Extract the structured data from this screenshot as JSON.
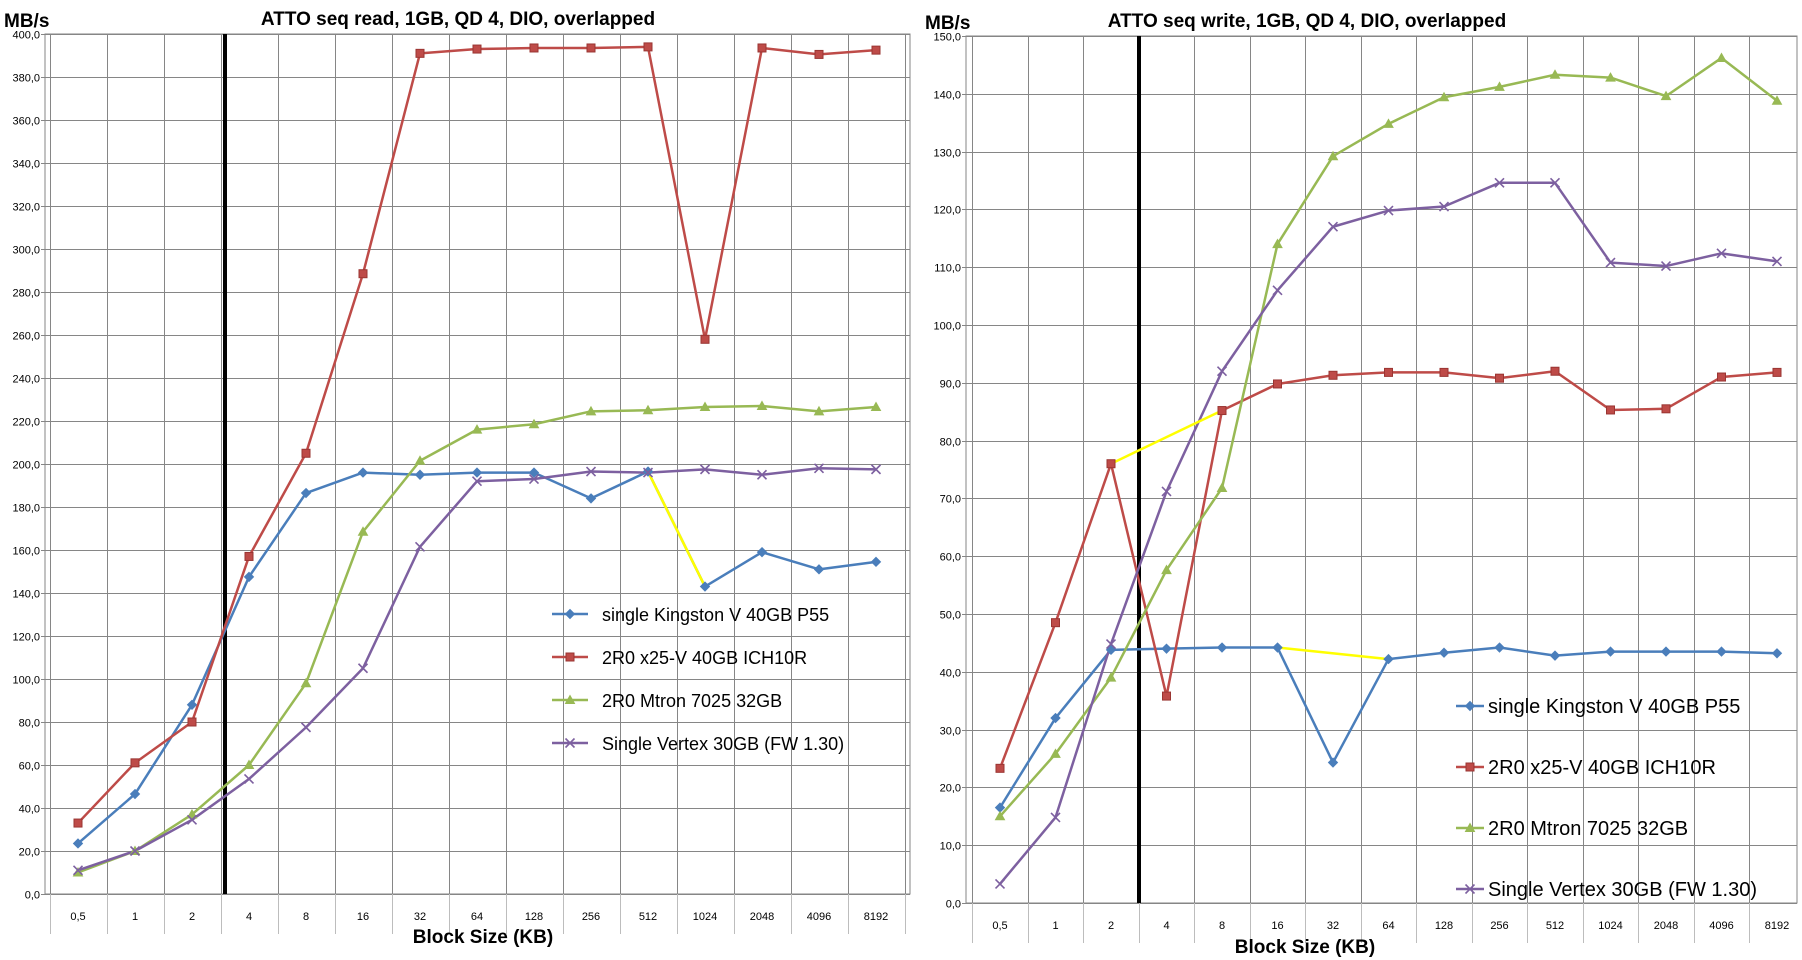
{
  "chart_data": [
    {
      "type": "line",
      "title": "ATTO seq read, 1GB, QD 4, DIO, overlapped",
      "ylabel": "MB/s",
      "xlabel": "Block Size (KB)",
      "ylim": [
        0,
        400
      ],
      "ystep": 20,
      "categories": [
        "0,5",
        "1",
        "2",
        "4",
        "8",
        "16",
        "32",
        "64",
        "128",
        "256",
        "512",
        "1024",
        "2048",
        "4096",
        "8192"
      ],
      "legend_position": "bottom-right",
      "grid": true,
      "series": [
        {
          "name": "single Kingston V 40GB P55",
          "color": "#4a7ebb",
          "marker": "diamond",
          "values": [
            23.5,
            46.5,
            88,
            147.5,
            186.5,
            196,
            195,
            196,
            196,
            184,
            196.5,
            143,
            159,
            151,
            154.5
          ]
        },
        {
          "name": "2R0 x25-V 40GB ICH10R",
          "color": "#be4b48",
          "marker": "square",
          "values": [
            33,
            61,
            80,
            157,
            205,
            288.5,
            391,
            393,
            393.5,
            393.5,
            394,
            258,
            393.5,
            390.5,
            392.5
          ]
        },
        {
          "name": "2R0 Mtron 7025 32GB",
          "color": "#98b954",
          "marker": "triangle",
          "values": [
            10,
            20,
            37,
            60,
            98,
            168.5,
            201.5,
            216,
            218.5,
            224.5,
            225,
            226.5,
            227,
            224.5,
            226.5
          ]
        },
        {
          "name": "Single Vertex 30GB (FW 1.30)",
          "color": "#7d60a0",
          "marker": "x",
          "values": [
            11,
            20,
            34.5,
            53.5,
            77.5,
            105,
            161.5,
            192,
            193,
            196.5,
            196,
            197.5,
            195,
            198,
            197.5
          ]
        }
      ]
    },
    {
      "type": "line",
      "title": "ATTO seq write, 1GB, QD 4, DIO, overlapped",
      "ylabel": "MB/s",
      "xlabel": "Block Size (KB)",
      "ylim": [
        0,
        150
      ],
      "ystep": 10,
      "categories": [
        "0,5",
        "1",
        "2",
        "4",
        "8",
        "16",
        "32",
        "64",
        "128",
        "256",
        "512",
        "1024",
        "2048",
        "4096",
        "8192"
      ],
      "legend_position": "bottom-right",
      "grid": true,
      "series": [
        {
          "name": "single Kingston V 40GB P55",
          "color": "#4a7ebb",
          "marker": "diamond",
          "values": [
            16.5,
            32,
            43.8,
            44,
            44.2,
            44.2,
            24.3,
            42.2,
            43.3,
            44.2,
            42.8,
            43.5,
            43.5,
            43.5,
            43.2
          ]
        },
        {
          "name": "2R0 x25-V 40GB ICH10R",
          "color": "#be4b48",
          "marker": "square",
          "values": [
            23.3,
            48.5,
            76,
            35.8,
            85.2,
            89.8,
            91.3,
            91.8,
            91.8,
            90.8,
            92,
            85.3,
            85.5,
            91,
            91.8
          ]
        },
        {
          "name": "2R0 Mtron 7025 32GB",
          "color": "#98b954",
          "marker": "triangle",
          "values": [
            15,
            25.8,
            39,
            57.6,
            71.8,
            114,
            129.2,
            134.8,
            139.4,
            141.2,
            143.3,
            142.8,
            139.6,
            146.2,
            138.8
          ]
        },
        {
          "name": "Single Vertex 30GB (FW 1.30)",
          "color": "#7d60a0",
          "marker": "x",
          "values": [
            3.3,
            14.8,
            44.8,
            71.2,
            92,
            106,
            117,
            119.8,
            120.5,
            124.6,
            124.6,
            110.8,
            110.2,
            112.4,
            111
          ]
        }
      ]
    }
  ]
}
